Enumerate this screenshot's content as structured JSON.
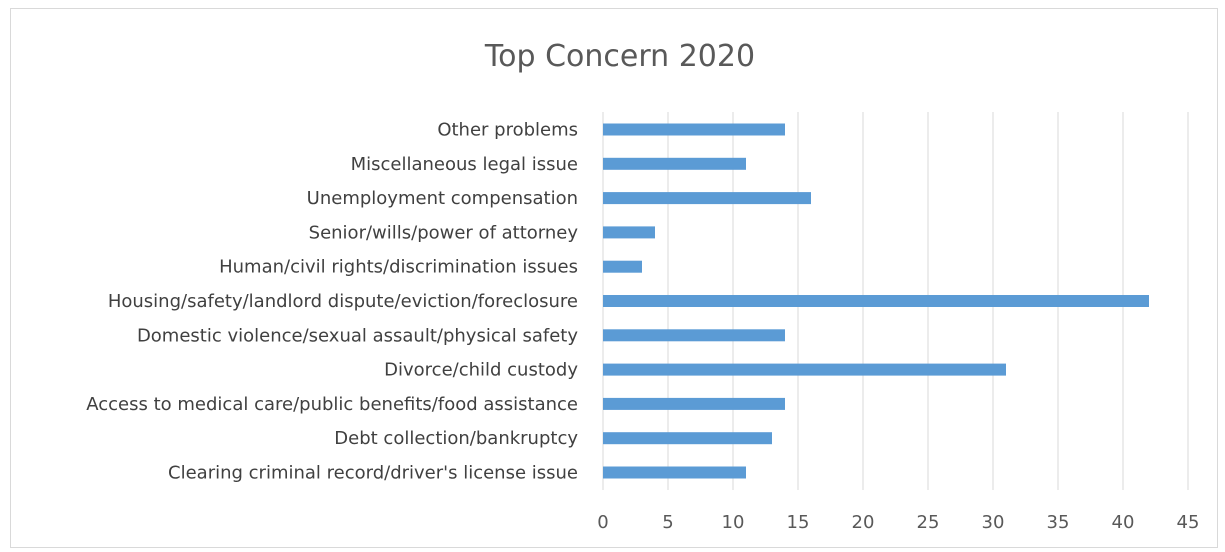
{
  "chart_data": {
    "type": "bar",
    "orientation": "horizontal",
    "title": "Top Concern 2020",
    "xlabel": "",
    "ylabel": "",
    "categories": [
      "Other problems",
      "Miscellaneous legal issue",
      "Unemployment compensation",
      "Senior/wills/power of attorney",
      "Human/civil rights/discrimination issues",
      "Housing/safety/landlord dispute/eviction/foreclosure",
      "Domestic violence/sexual assault/physical safety",
      "Divorce/child custody",
      "Access to medical care/public benefits/food assistance",
      "Debt collection/bankruptcy",
      "Clearing criminal record/driver's license issue"
    ],
    "values": [
      14,
      11,
      16,
      4,
      3,
      42,
      14,
      31,
      14,
      13,
      11
    ],
    "xlim": [
      0,
      45
    ],
    "xticks": [
      "0",
      "5",
      "10",
      "15",
      "20",
      "25",
      "30",
      "35",
      "40",
      "45"
    ],
    "grid": true,
    "legend": "none",
    "bar_color": "#5b9bd5",
    "grid_color": "#d9d9d9"
  }
}
